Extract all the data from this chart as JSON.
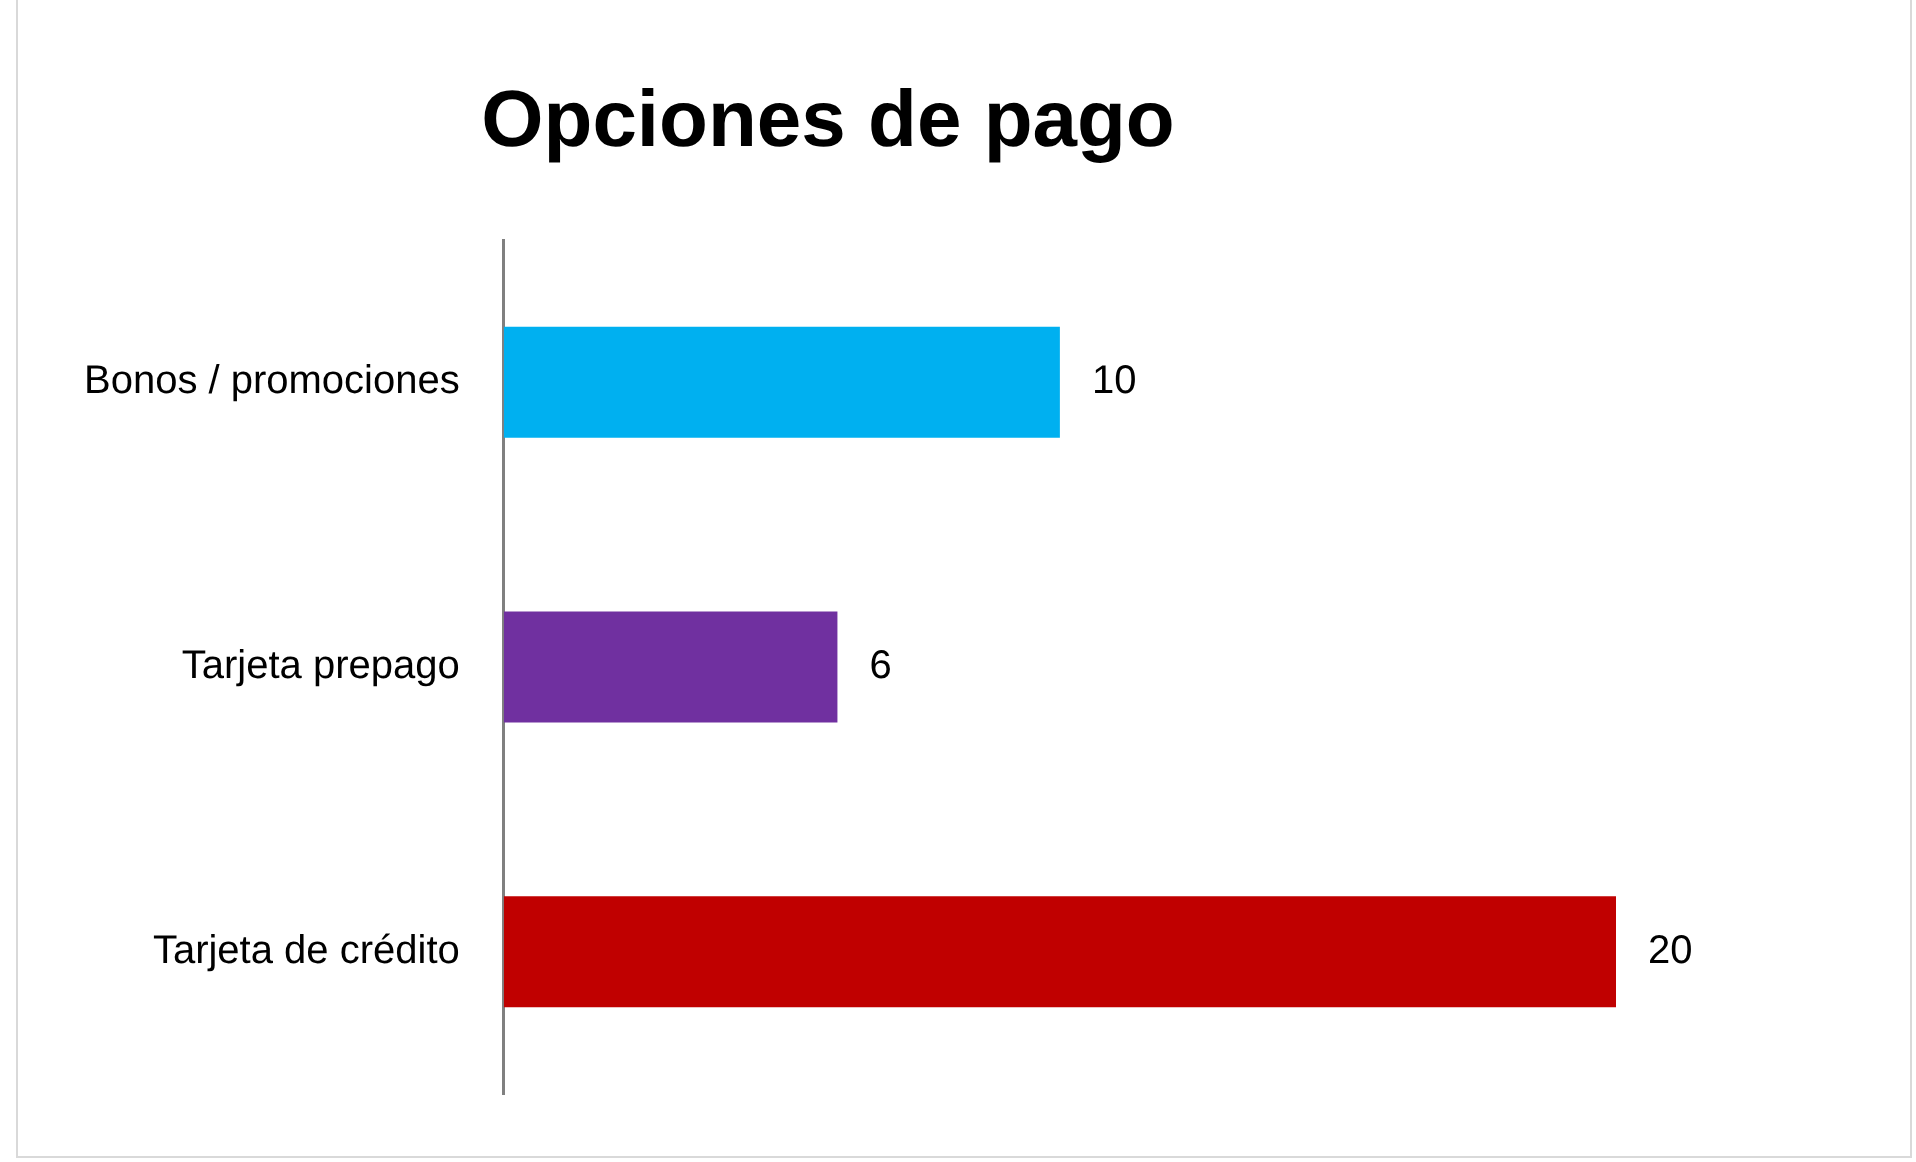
{
  "chart_data": {
    "type": "bar",
    "orientation": "horizontal",
    "title": "Opciones de pago",
    "categories": [
      "Bonos / promociones",
      "Tarjeta prepago",
      "Tarjeta de crédito"
    ],
    "values": [
      10,
      6,
      20
    ],
    "colors": [
      "#00b0f0",
      "#7030a0",
      "#c00000"
    ],
    "data_labels": true
  }
}
